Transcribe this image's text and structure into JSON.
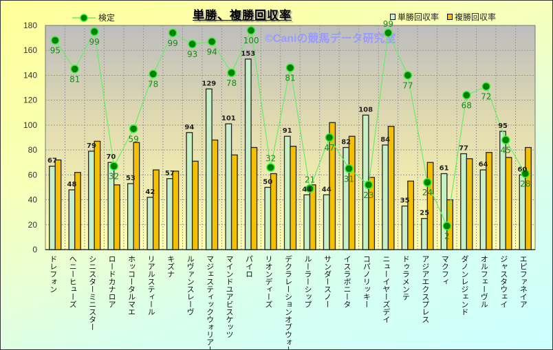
{
  "chart_data": {
    "type": "bar",
    "title": "単勝、複勝回収率",
    "watermark": "©Caniの競馬データ研究室",
    "ylim": [
      0,
      180
    ],
    "yticks": [
      0,
      20,
      40,
      60,
      80,
      100,
      120,
      140,
      160,
      180
    ],
    "grid": true,
    "legend_placement": "top",
    "categories": [
      "ドレフォン",
      "ヘニーヒューズ",
      "シニスターミニスター",
      "ロードカナロア",
      "ホッコータルマエ",
      "リアルスティール",
      "キズナ",
      "ルヴァンスレーヴ",
      "マジェスティックウォリアー",
      "マインドユアビスケッツ",
      "パイロ",
      "リオンディーズ",
      "デクラレーションオブウォー",
      "ルーラーシップ",
      "サンダースノー",
      "イスラボニータ",
      "コパノリッキー",
      "ニューイヤーズデイ",
      "ドゥラメンテ",
      "アジアエクスプレス",
      "マクフィ",
      "ダノンレジェンド",
      "オルフェーヴル",
      "ジャスタウェイ",
      "エピファネイア"
    ],
    "series": [
      {
        "name": "単勝回収率",
        "type": "bar",
        "color": "#c8f0c8",
        "values": [
          67,
          48,
          79,
          70,
          53,
          42,
          57,
          94,
          129,
          101,
          153,
          50,
          91,
          44,
          44,
          82,
          108,
          84,
          35,
          25,
          61,
          77,
          64,
          95,
          60
        ]
      },
      {
        "name": "複勝回収率",
        "type": "bar",
        "color": "#f5c000",
        "values": [
          72,
          62,
          87,
          52,
          86,
          64,
          63,
          71,
          88,
          76,
          82,
          61,
          83,
          52,
          102,
          91,
          58,
          99,
          55,
          70,
          40,
          73,
          78,
          74,
          82
        ]
      },
      {
        "name": "検定",
        "type": "line",
        "color": "#008000",
        "values": [
          168,
          145,
          175,
          67,
          97,
          141,
          174,
          165,
          167,
          142,
          176,
          66,
          146,
          49,
          90,
          65,
          52,
          174,
          140,
          54,
          19,
          124,
          131,
          88,
          61
        ],
        "labels": [
          95,
          81,
          99,
          32,
          59,
          78,
          99,
          93,
          94,
          78,
          100,
          32,
          81,
          21,
          47,
          31,
          23,
          99,
          77,
          24,
          2,
          68,
          72,
          45,
          28
        ]
      }
    ]
  }
}
